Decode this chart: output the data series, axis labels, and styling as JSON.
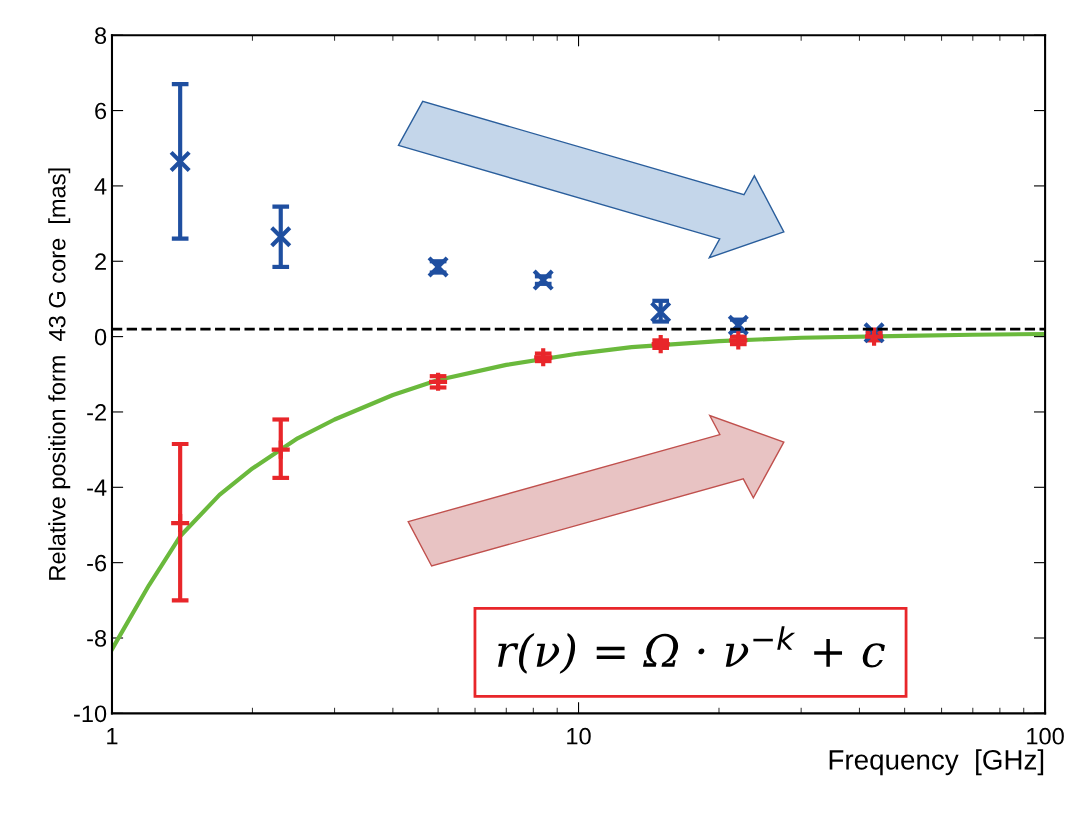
{
  "chart_data": {
    "type": "scatter",
    "xlabel": "Frequency  [GHz]",
    "ylabel": "Relative position form  43 G core  [mas]",
    "log": "x",
    "xlim": [
      1,
      100
    ],
    "xticks": [
      1,
      10,
      100
    ],
    "ylim": [
      -10,
      8
    ],
    "yticks": [
      -10,
      -8,
      -6,
      -4,
      -2,
      0,
      2,
      4,
      6,
      8
    ],
    "grid": false,
    "legend": false,
    "series": [
      {
        "color": "#1f4fa0",
        "marker": "cross",
        "x": [
          1.4,
          2.3,
          5,
          8.4,
          15,
          22,
          43
        ],
        "values": [
          4.65,
          2.65,
          1.85,
          1.5,
          0.65,
          0.3,
          0.1
        ],
        "errors": [
          [
            2.6,
            6.7
          ],
          [
            1.85,
            3.45
          ],
          [
            1.7,
            2.0
          ],
          [
            1.4,
            1.6
          ],
          [
            0.4,
            0.95
          ],
          [
            0.15,
            0.45
          ],
          [
            0.05,
            0.15
          ]
        ]
      },
      {
        "color": "#e8262a",
        "marker": "plus",
        "x": [
          1.4,
          2.3,
          5,
          8.4,
          15,
          22,
          43
        ],
        "values": [
          -4.95,
          -3.0,
          -1.2,
          -0.55,
          -0.2,
          -0.1,
          0.0
        ],
        "errors": [
          [
            -7.0,
            -2.85
          ],
          [
            -3.75,
            -2.2
          ],
          [
            -1.35,
            -1.05
          ],
          [
            -0.65,
            -0.45
          ],
          [
            -0.3,
            -0.1
          ],
          [
            -0.2,
            0.0
          ],
          [
            -0.1,
            0.1
          ]
        ]
      },
      {
        "type": "line",
        "color": "#6ab93c",
        "marker": "none",
        "x": [
          1,
          1.2,
          1.4,
          1.7,
          2,
          2.5,
          3,
          4,
          5,
          7,
          10,
          13,
          20,
          30,
          50,
          70,
          100
        ],
        "values": [
          -8.3,
          -6.6,
          -5.3,
          -4.2,
          -3.5,
          -2.7,
          -2.2,
          -1.55,
          -1.15,
          -0.75,
          -0.45,
          -0.28,
          -0.12,
          -0.03,
          0.02,
          0.05,
          0.07
        ]
      }
    ],
    "ref_lines": [
      {
        "axis": "y",
        "value": 0.2,
        "color": "#000000",
        "line_style": "dashed"
      }
    ],
    "annotations": [
      "r(ν) = Ω · ν$^{−k}$ + c"
    ]
  }
}
